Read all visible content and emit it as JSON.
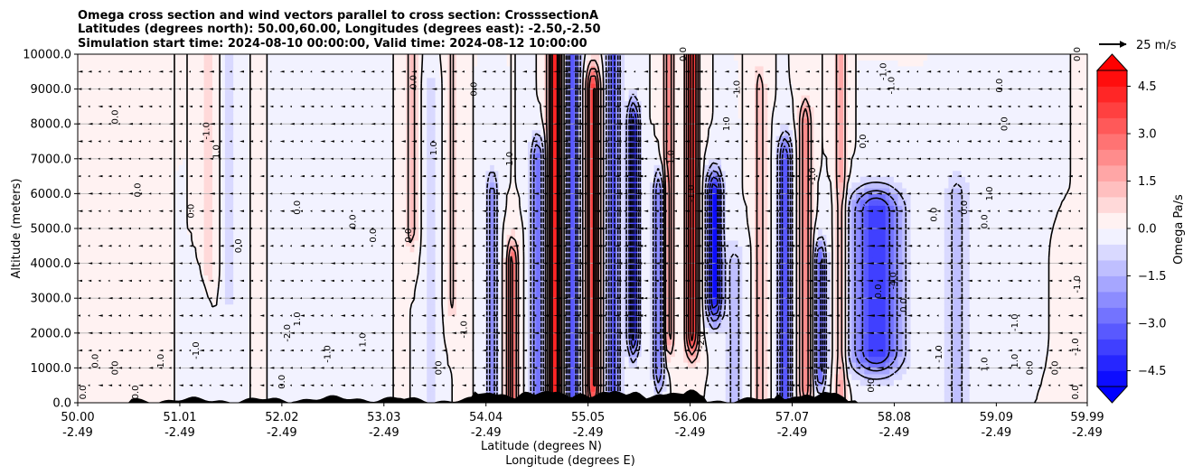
{
  "chart_data": {
    "type": "contour",
    "title_lines": [
      "Omega cross section and wind vectors parallel to cross section: CrosssectionA",
      "Latitudes (degrees north): 50.00,60.00, Longitudes (degrees east): -2.50,-2.50",
      "Simulation start time: 2024-08-10 00:00:00, Valid time: 2024-08-12 10:00:00"
    ],
    "ylabel": "Altitude (meters)",
    "xlabel_lines": [
      "Latitude (degrees N)",
      "Longitude (degrees E)"
    ],
    "xlim": [
      50.0,
      59.99
    ],
    "ylim": [
      0,
      10000
    ],
    "grid": "horizontal",
    "x_ticks": [
      {
        "lat": "50.00",
        "lon": "-2.49",
        "value": 50.0
      },
      {
        "lat": "51.01",
        "lon": "-2.49",
        "value": 51.01
      },
      {
        "lat": "52.02",
        "lon": "-2.49",
        "value": 52.02
      },
      {
        "lat": "53.03",
        "lon": "-2.49",
        "value": 53.03
      },
      {
        "lat": "54.04",
        "lon": "-2.49",
        "value": 54.04
      },
      {
        "lat": "55.05",
        "lon": "-2.49",
        "value": 55.05
      },
      {
        "lat": "56.06",
        "lon": "-2.49",
        "value": 56.06
      },
      {
        "lat": "57.07",
        "lon": "-2.49",
        "value": 57.07
      },
      {
        "lat": "58.08",
        "lon": "-2.49",
        "value": 58.08
      },
      {
        "lat": "59.09",
        "lon": "-2.49",
        "value": 59.09
      },
      {
        "lat": "59.99",
        "lon": "-2.49",
        "value": 59.99
      }
    ],
    "y_ticks": [
      {
        "label": "0.0",
        "value": 0
      },
      {
        "label": "1000.0",
        "value": 1000
      },
      {
        "label": "2000.0",
        "value": 2000
      },
      {
        "label": "3000.0",
        "value": 3000
      },
      {
        "label": "4000.0",
        "value": 4000
      },
      {
        "label": "5000.0",
        "value": 5000
      },
      {
        "label": "6000.0",
        "value": 6000
      },
      {
        "label": "7000.0",
        "value": 7000
      },
      {
        "label": "8000.0",
        "value": 8000
      },
      {
        "label": "9000.0",
        "value": 9000
      },
      {
        "label": "10000.0",
        "value": 10000
      }
    ],
    "colorbar": {
      "label": "Omega Pa/s",
      "range": [
        -5.0,
        5.0
      ],
      "levels": 20,
      "extend": "both",
      "ticks": [
        {
          "label": "4.5",
          "value": 4.5
        },
        {
          "label": "3.0",
          "value": 3.0
        },
        {
          "label": "1.5",
          "value": 1.5
        },
        {
          "label": "0.0",
          "value": 0.0
        },
        {
          "label": "−1.5",
          "value": -1.5
        },
        {
          "label": "−3.0",
          "value": -3.0
        },
        {
          "label": "−4.5",
          "value": -4.5
        }
      ]
    },
    "quiver_key": {
      "label": "25 m/s",
      "speed": 25
    },
    "omega_features": [
      {
        "lat": 50.0,
        "z0": 5000,
        "z1": 10000,
        "value": 0.3,
        "halfwidth": 0.15
      },
      {
        "lat": 50.3,
        "z0": 0,
        "z1": 2000,
        "value": 0.4,
        "halfwidth": 0.2
      },
      {
        "lat": 51.3,
        "z0": 4000,
        "z1": 10000,
        "value": 1.0,
        "halfwidth": 0.06
      },
      {
        "lat": 51.2,
        "z0": 1000,
        "z1": 3000,
        "value": -0.5,
        "halfwidth": 0.08
      },
      {
        "lat": 51.5,
        "z0": 3000,
        "z1": 10000,
        "value": -0.7,
        "halfwidth": 0.06
      },
      {
        "lat": 52.5,
        "z0": 0,
        "z1": 8000,
        "value": -0.3,
        "halfwidth": 0.2
      },
      {
        "lat": 53.3,
        "z0": 5000,
        "z1": 10000,
        "value": 1.5,
        "halfwidth": 0.05
      },
      {
        "lat": 53.5,
        "z0": 0,
        "z1": 9000,
        "value": -0.8,
        "halfwidth": 0.06
      },
      {
        "lat": 53.7,
        "z0": 3000,
        "z1": 10000,
        "value": 1.2,
        "halfwidth": 0.05
      },
      {
        "lat": 54.1,
        "z0": 0,
        "z1": 6000,
        "value": -2.5,
        "halfwidth": 0.05
      },
      {
        "lat": 54.3,
        "z0": 0,
        "z1": 4000,
        "value": 3.5,
        "halfwidth": 0.05
      },
      {
        "lat": 54.55,
        "z0": 0,
        "z1": 7000,
        "value": -3.0,
        "halfwidth": 0.06
      },
      {
        "lat": 54.72,
        "z0": 0,
        "z1": 10000,
        "value": 4.8,
        "halfwidth": 0.06
      },
      {
        "lat": 54.9,
        "z0": 0,
        "z1": 10000,
        "value": -4.0,
        "halfwidth": 0.06
      },
      {
        "lat": 55.1,
        "z0": 500,
        "z1": 9000,
        "value": 4.5,
        "halfwidth": 0.06
      },
      {
        "lat": 55.3,
        "z0": 0,
        "z1": 10000,
        "value": -3.5,
        "halfwidth": 0.06
      },
      {
        "lat": 55.5,
        "z0": 2000,
        "z1": 8000,
        "value": -4.5,
        "halfwidth": 0.05
      },
      {
        "lat": 55.75,
        "z0": 1000,
        "z1": 6000,
        "value": -3.0,
        "halfwidth": 0.05
      },
      {
        "lat": 55.85,
        "z0": 2000,
        "z1": 10000,
        "value": 2.5,
        "halfwidth": 0.05
      },
      {
        "lat": 56.08,
        "z0": 2000,
        "z1": 10000,
        "value": 4.5,
        "halfwidth": 0.06
      },
      {
        "lat": 56.3,
        "z0": 3000,
        "z1": 6000,
        "value": -5.0,
        "halfwidth": 0.07
      },
      {
        "lat": 56.5,
        "z0": 0,
        "z1": 4000,
        "value": -1.2,
        "halfwidth": 0.1
      },
      {
        "lat": 56.75,
        "z0": 0,
        "z1": 9000,
        "value": 1.5,
        "halfwidth": 0.05
      },
      {
        "lat": 57.0,
        "z0": 0,
        "z1": 7000,
        "value": -4.0,
        "halfwidth": 0.06
      },
      {
        "lat": 57.2,
        "z0": 500,
        "z1": 8000,
        "value": 3.0,
        "halfwidth": 0.05
      },
      {
        "lat": 57.35,
        "z0": 1000,
        "z1": 4000,
        "value": -3.5,
        "halfwidth": 0.05
      },
      {
        "lat": 57.55,
        "z0": 0,
        "z1": 10000,
        "value": 2.0,
        "halfwidth": 0.05
      },
      {
        "lat": 57.9,
        "z0": 1500,
        "z1": 5500,
        "value": -4.0,
        "halfwidth": 0.25
      },
      {
        "lat": 58.7,
        "z0": 0,
        "z1": 6000,
        "value": -1.2,
        "halfwidth": 0.12
      },
      {
        "lat": 59.2,
        "z0": 2000,
        "z1": 10000,
        "value": -0.5,
        "halfwidth": 0.2
      },
      {
        "lat": 59.85,
        "z0": 0,
        "z1": 4000,
        "value": 0.4,
        "halfwidth": 0.12
      }
    ],
    "contour_labels": [
      {
        "text": "0.0",
        "lat": 50.08,
        "z": 300
      },
      {
        "text": "0.0",
        "lat": 50.2,
        "z": 1200
      },
      {
        "text": "0.0",
        "lat": 50.4,
        "z": 1000
      },
      {
        "text": "0.0",
        "lat": 50.6,
        "z": 300
      },
      {
        "text": "0.0",
        "lat": 50.4,
        "z": 8200
      },
      {
        "text": "0.0",
        "lat": 50.62,
        "z": 6100
      },
      {
        "text": "1.0",
        "lat": 50.85,
        "z": 1200
      },
      {
        "text": "-1.0",
        "lat": 51.2,
        "z": 1500
      },
      {
        "text": "1.0",
        "lat": 51.4,
        "z": 7200
      },
      {
        "text": "-1.0",
        "lat": 51.3,
        "z": 7800
      },
      {
        "text": "0.0",
        "lat": 51.15,
        "z": 5500
      },
      {
        "text": "0.0",
        "lat": 51.62,
        "z": 4500
      },
      {
        "text": "0.0",
        "lat": 52.05,
        "z": 600
      },
      {
        "text": "1.0",
        "lat": 52.2,
        "z": 2400
      },
      {
        "text": "-2.0",
        "lat": 52.1,
        "z": 2000
      },
      {
        "text": "0.0",
        "lat": 52.2,
        "z": 5600
      },
      {
        "text": "-1.0",
        "lat": 52.5,
        "z": 1400
      },
      {
        "text": "1.0",
        "lat": 52.85,
        "z": 1800
      },
      {
        "text": "0.0",
        "lat": 52.75,
        "z": 5200
      },
      {
        "text": "0.0",
        "lat": 52.95,
        "z": 4800
      },
      {
        "text": "0.0",
        "lat": 53.3,
        "z": 4800
      },
      {
        "text": "0.0",
        "lat": 53.35,
        "z": 9200
      },
      {
        "text": "1.0",
        "lat": 53.55,
        "z": 7300
      },
      {
        "text": "0.0",
        "lat": 53.6,
        "z": 1000
      },
      {
        "text": "0.0",
        "lat": 53.95,
        "z": 9000
      },
      {
        "text": "1.0",
        "lat": 54.3,
        "z": 7000
      },
      {
        "text": "-1.0",
        "lat": 53.85,
        "z": 2100
      },
      {
        "text": "-1.0",
        "lat": 55.9,
        "z": 7000
      },
      {
        "text": "-1.0",
        "lat": 56.1,
        "z": 6000
      },
      {
        "text": "0.0",
        "lat": 56.02,
        "z": 10000
      },
      {
        "text": "-2.0",
        "lat": 56.2,
        "z": 1800
      },
      {
        "text": "1.0",
        "lat": 56.45,
        "z": 8000
      },
      {
        "text": "-1.0",
        "lat": 56.55,
        "z": 9000
      },
      {
        "text": "-1.0",
        "lat": 57.3,
        "z": 6500
      },
      {
        "text": "0.0",
        "lat": 57.8,
        "z": 7500
      },
      {
        "text": "-1.0",
        "lat": 58.08,
        "z": 9100
      },
      {
        "text": "-1.0",
        "lat": 58.0,
        "z": 9500
      },
      {
        "text": "-4.0",
        "lat": 58.1,
        "z": 3500
      },
      {
        "text": "0.0",
        "lat": 57.95,
        "z": 3200
      },
      {
        "text": "0.0",
        "lat": 57.88,
        "z": 500
      },
      {
        "text": "0.0",
        "lat": 58.2,
        "z": 2800
      },
      {
        "text": "0.0",
        "lat": 58.5,
        "z": 5400
      },
      {
        "text": "-1.0",
        "lat": 58.55,
        "z": 1400
      },
      {
        "text": "0.0",
        "lat": 58.8,
        "z": 5600
      },
      {
        "text": "0.0",
        "lat": 59.0,
        "z": 5200
      },
      {
        "text": "1.0",
        "lat": 59.05,
        "z": 6000
      },
      {
        "text": "0.0",
        "lat": 59.15,
        "z": 9100
      },
      {
        "text": "0.0",
        "lat": 59.2,
        "z": 8000
      },
      {
        "text": "-1.0",
        "lat": 59.3,
        "z": 2300
      },
      {
        "text": "1.0",
        "lat": 59.3,
        "z": 1200
      },
      {
        "text": "1.0",
        "lat": 59.0,
        "z": 1100
      },
      {
        "text": "0.0",
        "lat": 59.45,
        "z": 1000
      },
      {
        "text": "0.0",
        "lat": 59.7,
        "z": 1000
      },
      {
        "text": "-1.0",
        "lat": 59.9,
        "z": 1600
      },
      {
        "text": "0.0",
        "lat": 59.9,
        "z": 300
      },
      {
        "text": "-1.0",
        "lat": 59.92,
        "z": 3400
      },
      {
        "text": "0.0",
        "lat": 59.92,
        "z": 10000
      }
    ]
  }
}
